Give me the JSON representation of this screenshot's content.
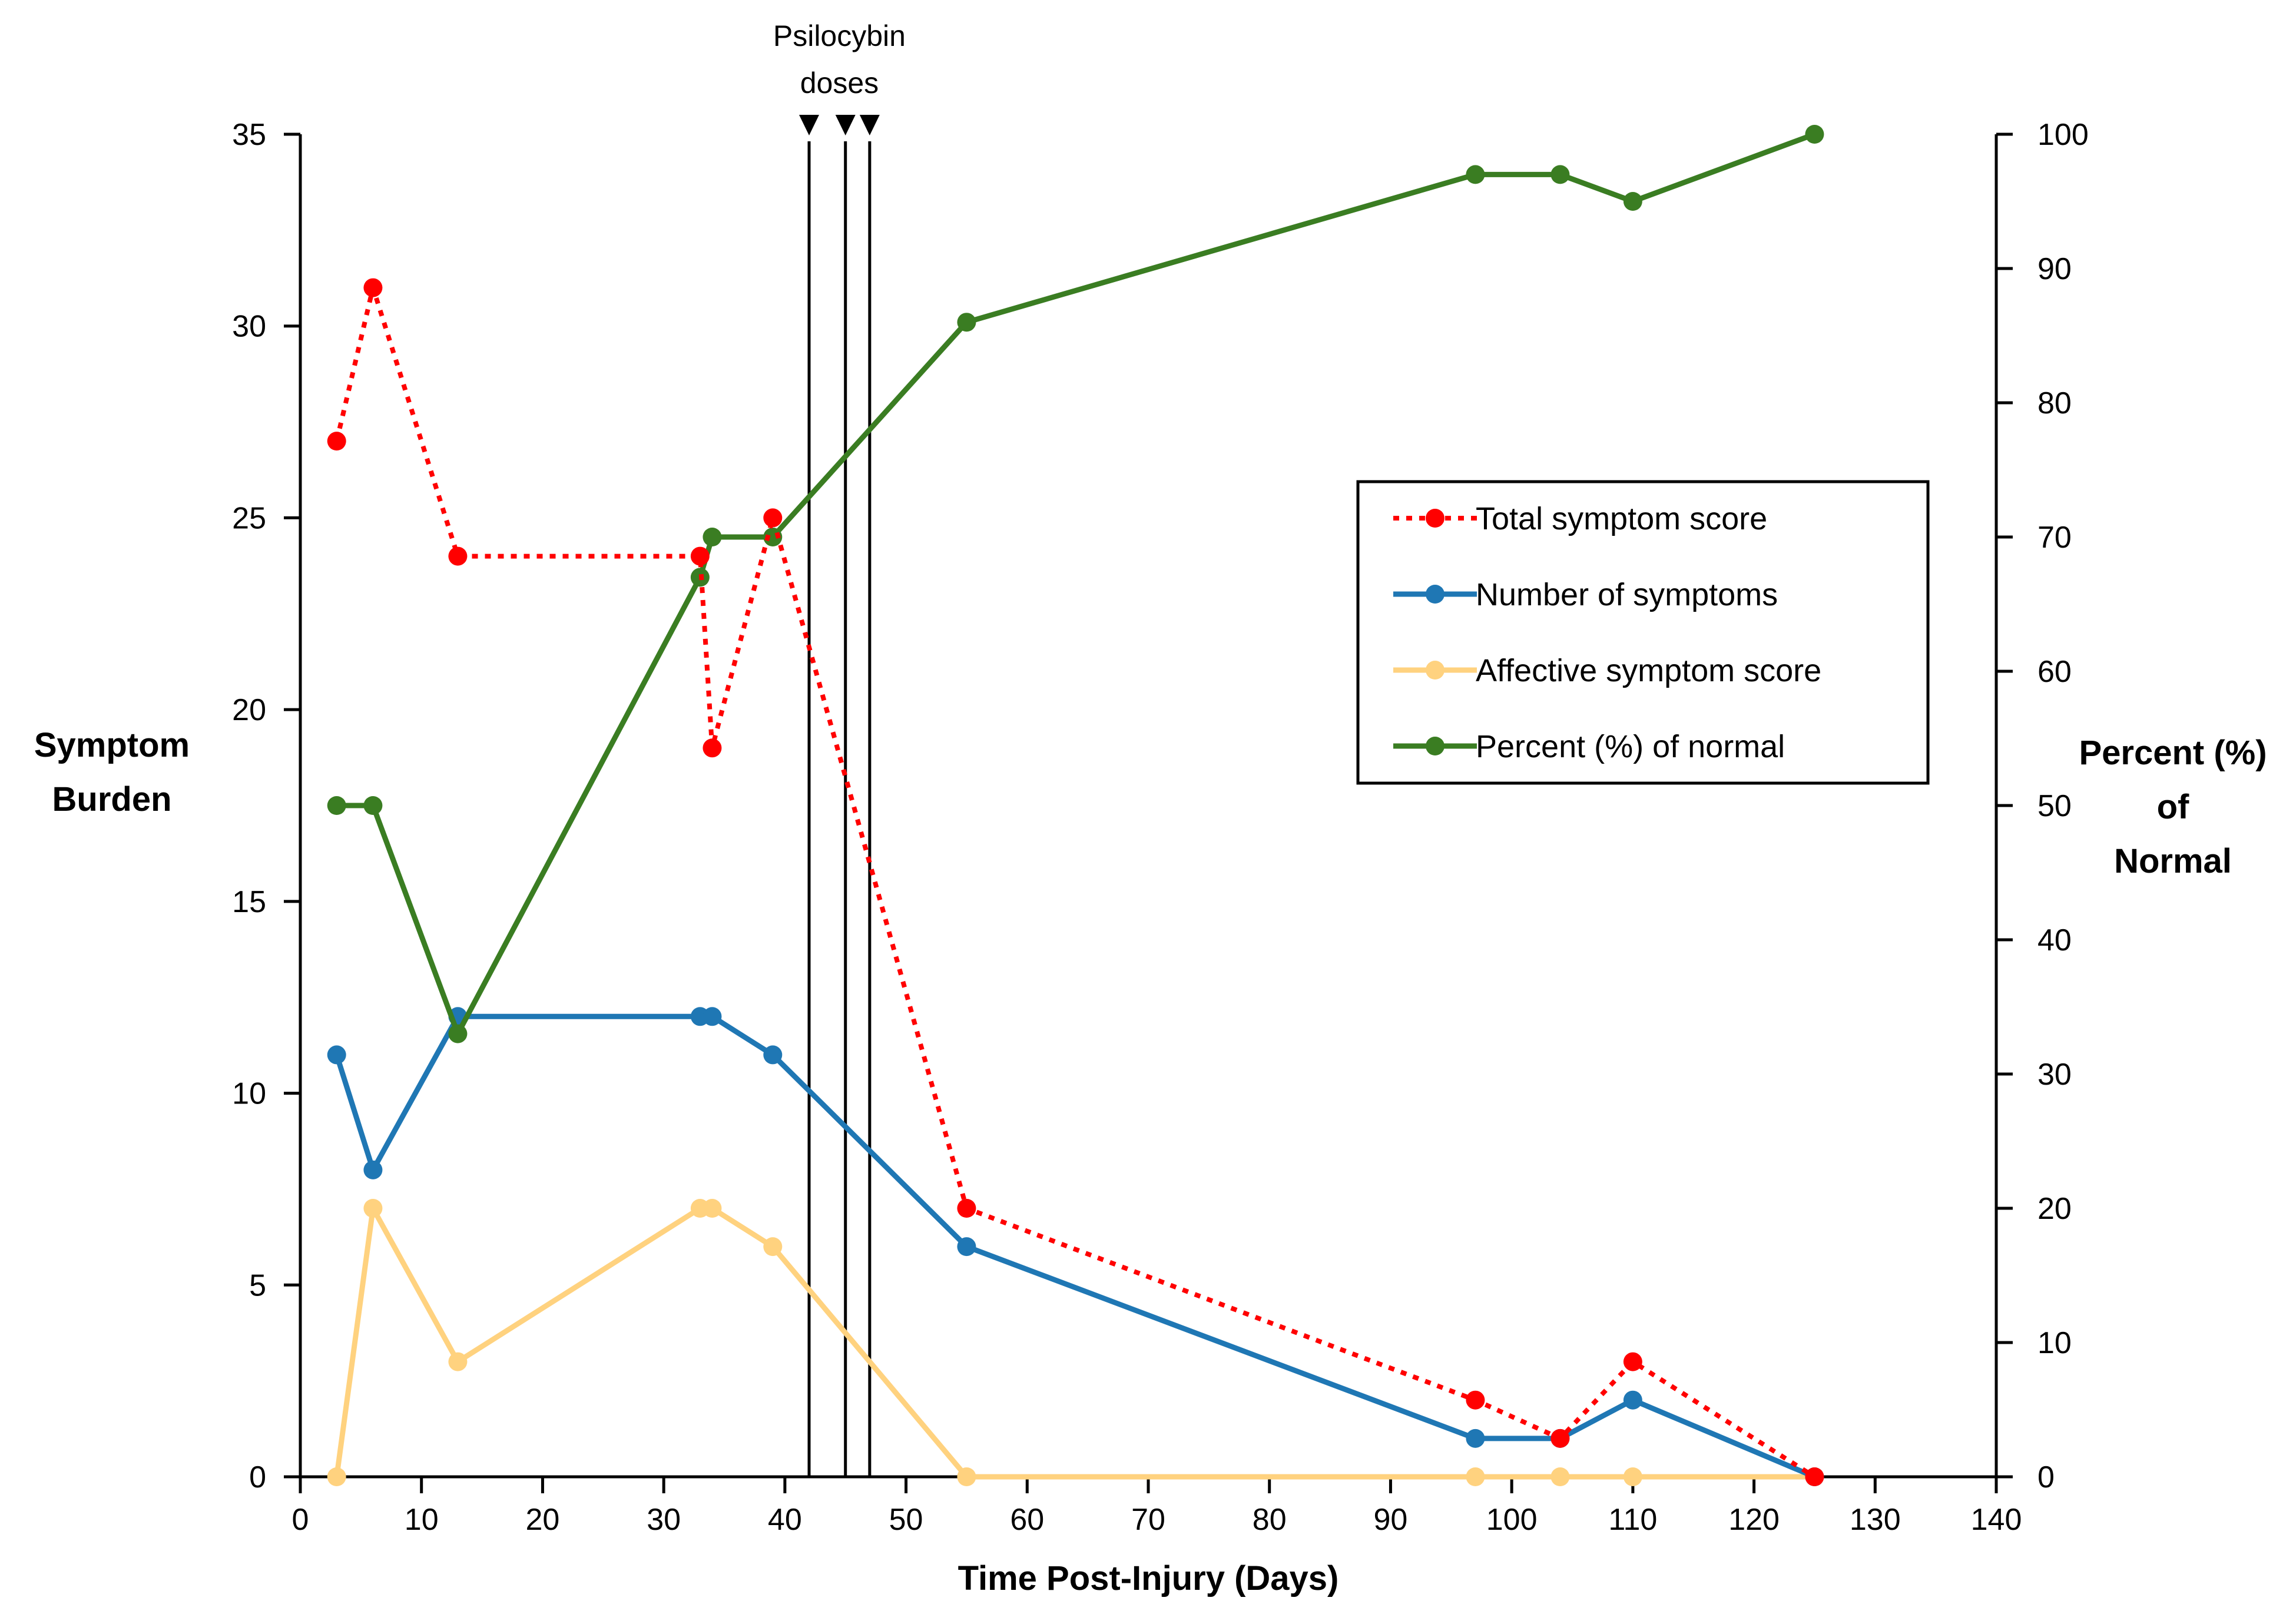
{
  "chart_data": {
    "type": "line",
    "title": "",
    "xlabel": "Time Post-Injury (Days)",
    "ylabel": [
      "Symptom",
      "Burden"
    ],
    "y2label": [
      "Percent (%)",
      "of",
      "Normal"
    ],
    "xlim": [
      0,
      140
    ],
    "ylim": [
      0,
      35
    ],
    "y2lim": [
      0,
      100
    ],
    "xticks": [
      0,
      10,
      20,
      30,
      40,
      50,
      60,
      70,
      80,
      90,
      100,
      110,
      120,
      130,
      140
    ],
    "yticks": [
      0,
      5,
      10,
      15,
      20,
      25,
      30,
      35
    ],
    "y2ticks": [
      0,
      10,
      20,
      30,
      40,
      50,
      60,
      70,
      80,
      90,
      100
    ],
    "grid": false,
    "legend_position": "right",
    "annotation": {
      "text": [
        "Psilocybin",
        "doses"
      ],
      "dose_days": [
        42,
        45,
        47
      ]
    },
    "series": [
      {
        "name": "Total symptom score",
        "axis": "left",
        "color": "#ff0000",
        "dash": "dotted",
        "x": [
          3,
          6,
          13,
          33,
          34,
          39,
          55,
          97,
          104,
          110,
          125
        ],
        "y": [
          27,
          31,
          24,
          24,
          19,
          25,
          7,
          2,
          1,
          3,
          0
        ]
      },
      {
        "name": "Number of symptoms",
        "axis": "left",
        "color": "#1f77b4",
        "dash": "solid",
        "x": [
          3,
          6,
          13,
          33,
          34,
          39,
          55,
          97,
          104,
          110,
          125
        ],
        "y": [
          11,
          8,
          12,
          12,
          12,
          11,
          6,
          1,
          1,
          2,
          0
        ]
      },
      {
        "name": "Affective symptom score",
        "axis": "left",
        "color": "#ffd27f",
        "dash": "solid",
        "x": [
          3,
          6,
          13,
          33,
          34,
          39,
          55,
          97,
          104,
          110,
          125
        ],
        "y": [
          0,
          7,
          3,
          7,
          7,
          6,
          0,
          0,
          0,
          0,
          0
        ]
      },
      {
        "name": "Percent (%) of normal",
        "axis": "right",
        "color": "#3a7d22",
        "dash": "solid",
        "x": [
          3,
          6,
          13,
          33,
          34,
          39,
          55,
          97,
          104,
          110,
          125
        ],
        "y": [
          50,
          50,
          33,
          67,
          70,
          70,
          86,
          97,
          97,
          95,
          100
        ]
      }
    ]
  }
}
